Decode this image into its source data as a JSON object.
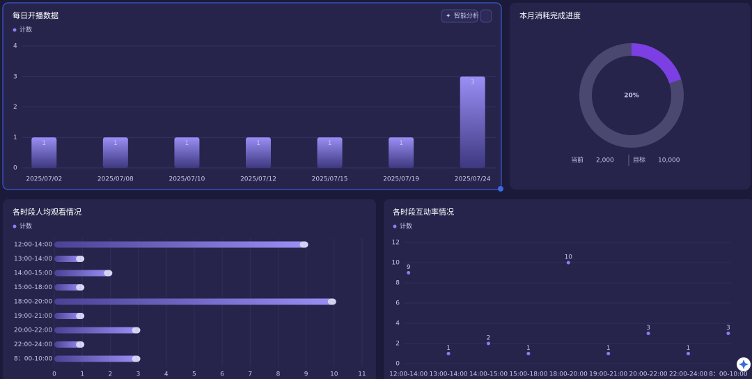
{
  "chart_data": [
    {
      "type": "bar",
      "title": "每日开播数据",
      "button": "智能分析",
      "categories": [
        "2025/07/02",
        "2025/07/08",
        "2025/07/10",
        "2025/07/12",
        "2025/07/15",
        "2025/07/19",
        "2025/07/24"
      ],
      "series": [
        {
          "name": "计数",
          "color": "#8b7ff0",
          "values": [
            1,
            1,
            1,
            1,
            1,
            1,
            3
          ]
        }
      ],
      "ylim": [
        0,
        4
      ],
      "yticks": [
        0,
        1,
        2,
        3,
        4
      ],
      "grid": true
    },
    {
      "type": "gauge",
      "title": "本月消耗完成进度",
      "values": [
        20
      ],
      "value_labels": [
        "20%"
      ],
      "color": "#7b3fe4",
      "current": {
        "label": "当前",
        "value": 2000,
        "value_label": "2,000"
      },
      "target": {
        "label": "目标",
        "value": 10000,
        "value_label": "10,000"
      }
    },
    {
      "type": "hbar",
      "title": "各时段人均观看情况",
      "categories": [
        "12:00-14:00",
        "13:00-14:00",
        "14:00-15:00",
        "15:00-18:00",
        "18:00-20:00",
        "19:00-21:00",
        "20:00-22:00",
        "22:00-24:00",
        "8：00-10:00"
      ],
      "series": [
        {
          "name": "计数",
          "color": "#8b7ff0",
          "values": [
            9,
            1,
            2,
            1,
            10,
            1,
            3,
            1,
            3
          ]
        }
      ],
      "xlim": [
        0,
        11
      ],
      "xticks": [
        0,
        1,
        2,
        3,
        4,
        5,
        6,
        7,
        8,
        9,
        10,
        11
      ],
      "grid": true
    },
    {
      "type": "dot",
      "title": "各时段互动率情况",
      "categories": [
        "12:00-14:00",
        "13:00-14:00",
        "14:00-15:00",
        "15:00-18:00",
        "18:00-20:00",
        "19:00-21:00",
        "20:00-22:00",
        "22:00-24:00",
        "8：00-10:00"
      ],
      "series": [
        {
          "name": "计数",
          "color": "#8b7ff0",
          "values": [
            9,
            1,
            2,
            1,
            10,
            1,
            3,
            1,
            3
          ]
        }
      ],
      "ylim": [
        0,
        12
      ],
      "yticks": [
        0,
        2,
        4,
        6,
        8,
        10,
        12
      ],
      "grid": true
    }
  ]
}
